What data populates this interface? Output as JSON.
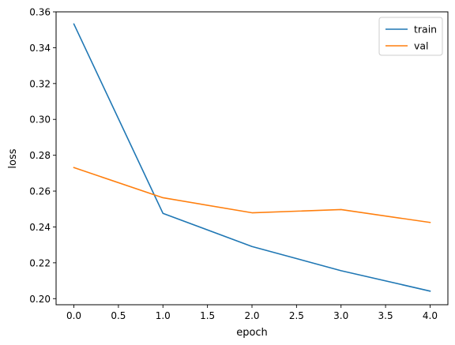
{
  "chart_data": {
    "type": "line",
    "xlabel": "epoch",
    "ylabel": "loss",
    "x": [
      0,
      1,
      2,
      3,
      4
    ],
    "series": [
      {
        "name": "train",
        "color": "#1f77b4",
        "values": [
          0.3532,
          0.2476,
          0.2291,
          0.2156,
          0.2042
        ]
      },
      {
        "name": "val",
        "color": "#ff7f0e",
        "values": [
          0.2731,
          0.2563,
          0.2479,
          0.2497,
          0.2425
        ]
      }
    ],
    "xticks": [
      "0.0",
      "0.5",
      "1.0",
      "1.5",
      "2.0",
      "2.5",
      "3.0",
      "3.5",
      "4.0"
    ],
    "yticks": [
      "0.20",
      "0.22",
      "0.24",
      "0.26",
      "0.28",
      "0.30",
      "0.32",
      "0.34",
      "0.36"
    ],
    "xlim": [
      -0.2,
      4.2
    ],
    "ylim": [
      0.1966,
      0.36
    ],
    "grid": false,
    "legend": "upper right"
  }
}
